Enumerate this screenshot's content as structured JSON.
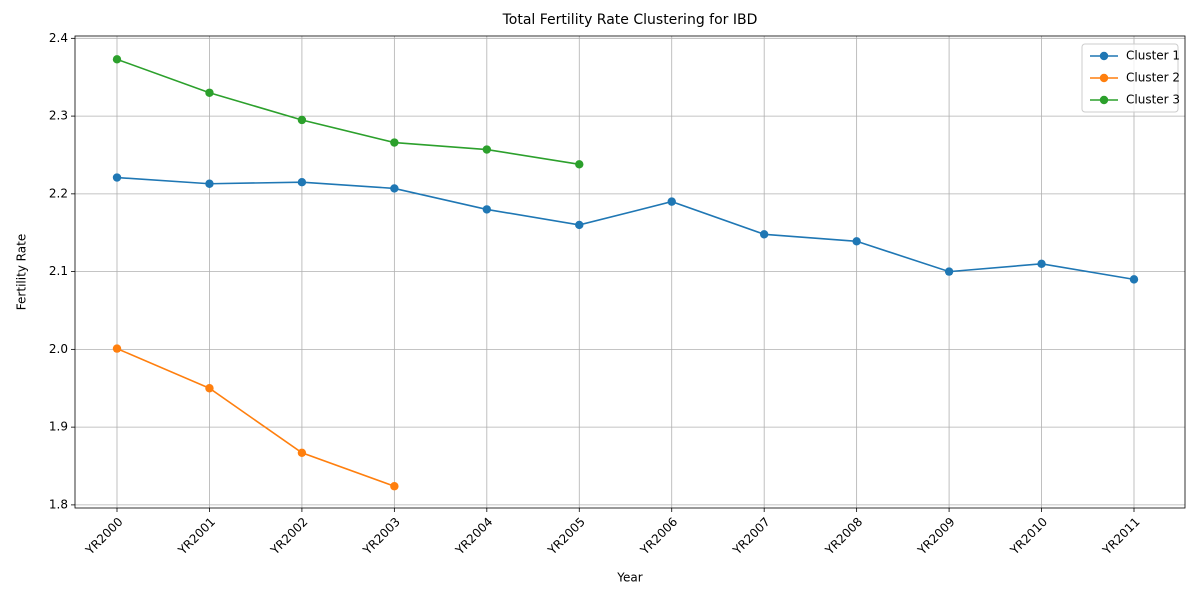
{
  "chart_data": {
    "type": "line",
    "title": "Total Fertility Rate Clustering for IBD",
    "xlabel": "Year",
    "ylabel": "Fertility Rate",
    "categories": [
      "YR2000",
      "YR2001",
      "YR2002",
      "YR2003",
      "YR2004",
      "YR2005",
      "YR2006",
      "YR2007",
      "YR2008",
      "YR2009",
      "YR2010",
      "YR2011"
    ],
    "series": [
      {
        "name": "Cluster 1",
        "color": "#1f77b4",
        "values": [
          2.221,
          2.213,
          2.215,
          2.207,
          2.18,
          2.16,
          2.19,
          2.148,
          2.139,
          2.1,
          2.11,
          2.09
        ]
      },
      {
        "name": "Cluster 2",
        "color": "#ff7f0e",
        "values": [
          2.001,
          1.95,
          1.867,
          1.824,
          null,
          null,
          null,
          null,
          null,
          null,
          null,
          null
        ]
      },
      {
        "name": "Cluster 3",
        "color": "#2ca02c",
        "values": [
          2.373,
          2.33,
          2.295,
          2.266,
          2.257,
          2.238,
          null,
          null,
          null,
          null,
          null,
          null
        ]
      }
    ],
    "ylim": [
      1.796,
      2.403
    ],
    "yticks": [
      1.8,
      1.9,
      {
        "value": 2,
        "label": "2.0"
      },
      2.1,
      2.2,
      2.3,
      2.4
    ],
    "grid": true,
    "legend": "upper right"
  }
}
